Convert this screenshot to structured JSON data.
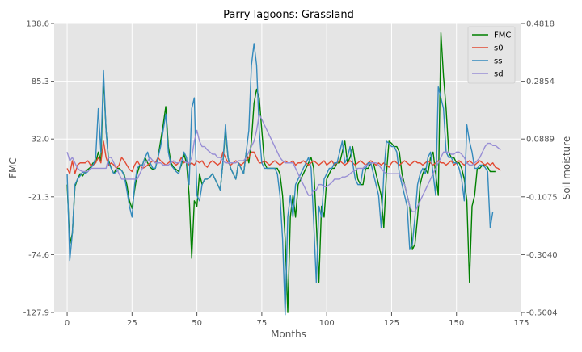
{
  "chart_data": {
    "type": "line",
    "title": "Parry lagoons: Grassland",
    "xlabel": "Months",
    "ylabel": "FMC",
    "ylabel_right": "Soil moisture",
    "xlim": [
      -5,
      175
    ],
    "ylim": [
      -127.9,
      138.6
    ],
    "ylim_right": [
      -0.5004,
      0.4818
    ],
    "xticks": [
      0,
      25,
      50,
      75,
      100,
      125,
      150,
      175
    ],
    "yticks_left": [
      "138.6",
      "85.3",
      "32.0",
      "-21.3",
      "-74.6",
      "-127.9"
    ],
    "yticks_right": [
      "0.4818",
      "0.2854",
      "0.0889",
      "-0.1075",
      "-0.3040",
      "-0.5004"
    ],
    "grid": true,
    "legend_position": "top-right",
    "background": "#e5e5e5",
    "series": [
      {
        "name": "FMC",
        "axis": "left",
        "color": "#008000",
        "values": [
          -10,
          -65,
          -55,
          -12,
          -5,
          0,
          -2,
          2,
          4,
          6,
          10,
          10,
          20,
          12,
          88,
          40,
          12,
          5,
          0,
          5,
          5,
          3,
          -1,
          -10,
          -25,
          -32,
          -15,
          0,
          8,
          8,
          15,
          10,
          6,
          4,
          5,
          15,
          30,
          45,
          62,
          25,
          10,
          6,
          4,
          2,
          8,
          18,
          10,
          -20,
          -78,
          -25,
          -30,
          0,
          -10,
          -5,
          -5,
          -3,
          0,
          -5,
          -10,
          -15,
          10,
          40,
          15,
          5,
          0,
          -5,
          10,
          5,
          0,
          20,
          10,
          30,
          65,
          78,
          70,
          40,
          10,
          5,
          5,
          5,
          5,
          5,
          0,
          -20,
          -60,
          -128,
          -40,
          -20,
          -40,
          -10,
          -5,
          0,
          5,
          10,
          15,
          5,
          -45,
          -100,
          -30,
          -40,
          -5,
          0,
          5,
          5,
          10,
          10,
          20,
          30,
          10,
          15,
          25,
          10,
          -5,
          -10,
          -10,
          5,
          5,
          10,
          10,
          0,
          -10,
          -20,
          -50,
          0,
          30,
          28,
          25,
          25,
          20,
          0,
          -10,
          -20,
          -30,
          -70,
          -65,
          -40,
          -10,
          0,
          5,
          0,
          15,
          20,
          0,
          -20,
          130,
          90,
          60,
          20,
          15,
          15,
          10,
          10,
          5,
          -5,
          -25,
          -100,
          -30,
          -20,
          5,
          5,
          8,
          8,
          6,
          2,
          2,
          2
        ]
      },
      {
        "name": "s0",
        "axis": "left",
        "color": "#e24a33",
        "values": [
          5,
          0,
          12,
          0,
          8,
          10,
          10,
          10,
          12,
          8,
          8,
          10,
          15,
          10,
          30,
          15,
          8,
          10,
          8,
          5,
          8,
          15,
          12,
          8,
          4,
          2,
          8,
          12,
          8,
          5,
          6,
          8,
          10,
          12,
          10,
          15,
          12,
          10,
          8,
          10,
          12,
          10,
          8,
          10,
          15,
          10,
          12,
          8,
          10,
          8,
          12,
          10,
          12,
          8,
          6,
          10,
          12,
          10,
          8,
          10,
          20,
          15,
          10,
          8,
          10,
          12,
          10,
          8,
          10,
          12,
          15,
          20,
          20,
          15,
          10,
          10,
          12,
          10,
          8,
          10,
          12,
          10,
          8,
          10,
          12,
          10,
          10,
          12,
          8,
          10,
          10,
          12,
          10,
          8,
          10,
          12,
          10,
          8,
          10,
          12,
          8,
          10,
          12,
          8,
          10,
          12,
          10,
          8,
          10,
          12,
          10,
          8,
          10,
          12,
          10,
          8,
          10,
          12,
          10,
          8,
          10,
          8,
          10,
          8,
          6,
          10,
          12,
          10,
          8,
          10,
          12,
          10,
          8,
          10,
          12,
          10,
          10,
          8,
          10,
          12,
          10,
          8,
          10,
          12,
          10,
          10,
          8,
          10,
          12,
          8,
          10,
          12,
          10,
          8,
          10,
          12,
          10,
          8,
          10,
          12,
          10,
          8,
          10,
          8,
          10,
          6,
          5,
          3
        ]
      },
      {
        "name": "ss",
        "axis": "left",
        "color": "#348abd",
        "values": [
          0,
          -80,
          -55,
          -10,
          -5,
          -2,
          2,
          0,
          2,
          5,
          8,
          15,
          60,
          20,
          95,
          40,
          10,
          5,
          0,
          2,
          4,
          3,
          -2,
          -15,
          -30,
          -40,
          -10,
          5,
          8,
          8,
          15,
          20,
          10,
          5,
          5,
          15,
          25,
          40,
          55,
          20,
          8,
          5,
          2,
          0,
          10,
          20,
          15,
          -10,
          60,
          70,
          -20,
          -25,
          -10,
          -5,
          -5,
          -3,
          0,
          -5,
          -10,
          -15,
          10,
          45,
          15,
          5,
          0,
          -5,
          10,
          5,
          0,
          20,
          40,
          100,
          120,
          100,
          40,
          10,
          5,
          5,
          5,
          5,
          5,
          0,
          -20,
          -60,
          -130,
          -40,
          -20,
          -40,
          -10,
          -5,
          0,
          5,
          10,
          15,
          5,
          -45,
          -100,
          -30,
          -40,
          -5,
          0,
          5,
          5,
          10,
          10,
          20,
          30,
          10,
          15,
          25,
          10,
          -5,
          -10,
          -10,
          5,
          5,
          10,
          10,
          0,
          -10,
          -20,
          -50,
          0,
          30,
          28,
          25,
          25,
          20,
          0,
          -10,
          -20,
          -30,
          -70,
          -65,
          -40,
          -10,
          0,
          5,
          0,
          15,
          20,
          0,
          -20,
          80,
          70,
          60,
          20,
          15,
          15,
          10,
          10,
          5,
          -5,
          -25,
          45,
          30,
          20,
          5,
          5,
          8,
          8,
          6,
          2,
          -50,
          -35
        ]
      },
      {
        "name": "sd",
        "axis": "left",
        "color": "#988ed5",
        "values": [
          20,
          12,
          15,
          10,
          5,
          3,
          2,
          2,
          2,
          5,
          5,
          5,
          5,
          5,
          5,
          5,
          15,
          15,
          10,
          5,
          0,
          -5,
          -5,
          -5,
          -5,
          -5,
          -5,
          -5,
          0,
          5,
          10,
          12,
          15,
          12,
          10,
          10,
          10,
          8,
          8,
          8,
          10,
          12,
          10,
          10,
          12,
          12,
          10,
          10,
          15,
          30,
          40,
          30,
          25,
          25,
          22,
          20,
          18,
          18,
          15,
          15,
          12,
          10,
          10,
          10,
          10,
          10,
          12,
          12,
          12,
          15,
          20,
          25,
          30,
          40,
          55,
          50,
          45,
          40,
          35,
          30,
          25,
          20,
          15,
          12,
          10,
          10,
          10,
          10,
          5,
          0,
          -5,
          -10,
          -15,
          -20,
          -20,
          -15,
          -15,
          -10,
          -10,
          -12,
          -12,
          -10,
          -8,
          -5,
          -5,
          -5,
          -3,
          -3,
          -2,
          0,
          2,
          3,
          5,
          5,
          5,
          8,
          8,
          10,
          10,
          10,
          8,
          5,
          2,
          0,
          0,
          0,
          0,
          0,
          0,
          -5,
          -10,
          -20,
          -30,
          -35,
          -35,
          -30,
          -25,
          -20,
          -15,
          -10,
          -5,
          0,
          5,
          10,
          15,
          20,
          20,
          20,
          18,
          18,
          20,
          20,
          18,
          15,
          10,
          8,
          8,
          10,
          12,
          15,
          20,
          25,
          28,
          28,
          26,
          26,
          24,
          22
        ]
      }
    ]
  }
}
